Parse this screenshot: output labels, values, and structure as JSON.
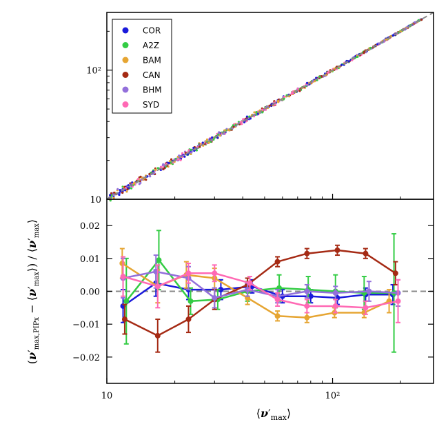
{
  "chart_data": [
    {
      "type": "scatter",
      "panel": "top",
      "xscale": "log",
      "yscale": "log",
      "xlim": [
        10,
        280
      ],
      "ylim": [
        10,
        280
      ],
      "ytick_labels": [
        "10",
        "10²"
      ],
      "legend_placement": "top-left",
      "reference_line": "y = x (dashed grey)",
      "series": [
        {
          "name": "COR",
          "color": "#1a1adb"
        },
        {
          "name": "A2Z",
          "color": "#33cc44"
        },
        {
          "name": "BAM",
          "color": "#e6a532"
        },
        {
          "name": "CAN",
          "color": "#a52a14"
        },
        {
          "name": "BHM",
          "color": "#9370db"
        },
        {
          "name": "SYD",
          "color": "#ff69b4"
        }
      ]
    },
    {
      "type": "line",
      "panel": "bottom",
      "xscale": "log",
      "xlim": [
        10,
        280
      ],
      "ylim": [
        -0.028,
        0.028
      ],
      "xlabel": "⟨ν′max⟩",
      "ylabel": "(ν′max,PIPx − ⟨ν′max⟩) / ⟨ν′max⟩",
      "xtick_labels": [
        "10",
        "10²"
      ],
      "ytick_labels": [
        "0.02",
        "0.01",
        "0.00",
        "−0.01",
        "−0.02"
      ],
      "reference_line": "y = 0 (dashed grey)",
      "series": [
        {
          "name": "COR",
          "color": "#1a1adb",
          "x": [
            11.8,
            16.5,
            23,
            32,
            44,
            60,
            80,
            105,
            140,
            185
          ],
          "y": [
            -0.0045,
            0.0025,
            0.0005,
            0.0005,
            0.0015,
            -0.0015,
            -0.0015,
            -0.002,
            -0.001,
            -0.001
          ],
          "err": [
            0.005,
            0.004,
            0.003,
            0.003,
            0.002,
            0.002,
            0.002,
            0.002,
            0.002,
            0.003
          ]
        },
        {
          "name": "A2Z",
          "color": "#33cc44",
          "x": [
            12.2,
            17,
            23.5,
            31,
            42,
            58,
            78,
            103,
            138,
            187
          ],
          "y": [
            -0.003,
            0.0095,
            -0.003,
            -0.0025,
            0.0,
            0.001,
            0.0005,
            0.0,
            -0.0005,
            -0.0005
          ],
          "err": [
            0.013,
            0.009,
            0.004,
            0.003,
            0.003,
            0.004,
            0.004,
            0.005,
            0.005,
            0.018
          ]
        },
        {
          "name": "BAM",
          "color": "#e6a532",
          "x": [
            11.7,
            16.8,
            22.5,
            30,
            42,
            57,
            77,
            102,
            138,
            178
          ],
          "y": [
            0.0085,
            0.0015,
            0.005,
            0.004,
            -0.002,
            -0.0075,
            -0.008,
            -0.0065,
            -0.0065,
            -0.003
          ],
          "err": [
            0.0045,
            0.005,
            0.004,
            0.003,
            0.002,
            0.0015,
            0.0015,
            0.0015,
            0.0015,
            0.0035
          ]
        },
        {
          "name": "CAN",
          "color": "#a52a14",
          "x": [
            12.0,
            16.8,
            23,
            30,
            42,
            57,
            77,
            105,
            140,
            190
          ],
          "y": [
            -0.0085,
            -0.0135,
            -0.0085,
            -0.0025,
            0.002,
            0.009,
            0.0115,
            0.0125,
            0.0115,
            0.0055
          ],
          "err": [
            0.0045,
            0.005,
            0.004,
            0.003,
            0.002,
            0.0015,
            0.0015,
            0.0015,
            0.0015,
            0.0035
          ]
        },
        {
          "name": "BHM",
          "color": "#9370db",
          "x": [
            11.8,
            16.5,
            23,
            30,
            42,
            57,
            77,
            103,
            145,
            195
          ],
          "y": [
            0.004,
            0.006,
            0.004,
            -0.002,
            0.0005,
            -0.0015,
            0.0,
            -0.0005,
            0.0,
            -0.0005
          ],
          "err": [
            0.006,
            0.005,
            0.0035,
            0.003,
            0.002,
            0.002,
            0.002,
            0.002,
            0.003,
            0.004
          ]
        },
        {
          "name": "SYD",
          "color": "#ff69b4",
          "x": [
            11.8,
            16.8,
            23,
            30,
            43,
            57,
            77,
            103,
            140,
            195
          ],
          "y": [
            0.0045,
            0.0015,
            0.0055,
            0.0055,
            0.0025,
            -0.0025,
            -0.0045,
            -0.0045,
            -0.005,
            -0.003
          ],
          "err": [
            0.006,
            0.0065,
            0.003,
            0.0025,
            0.002,
            0.002,
            0.002,
            0.002,
            0.002,
            0.0065
          ]
        }
      ]
    }
  ]
}
